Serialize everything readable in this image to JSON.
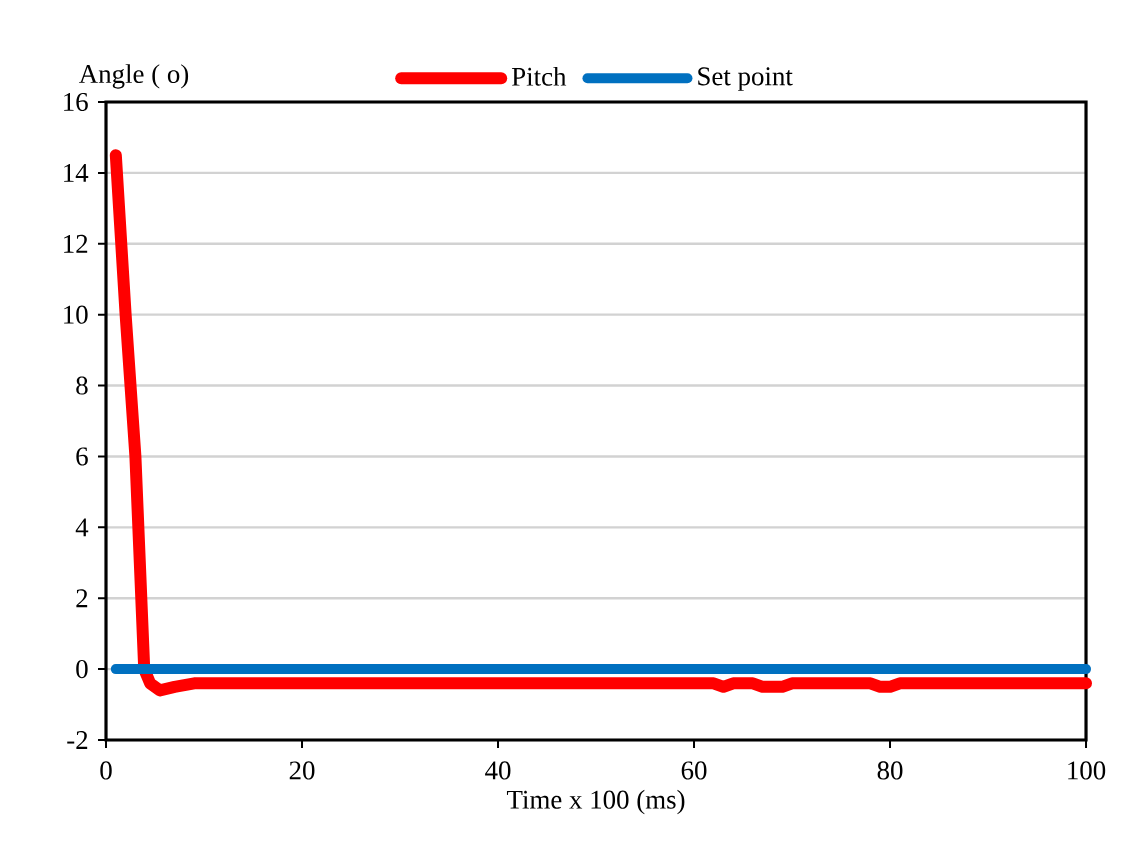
{
  "chart_data": {
    "type": "line",
    "xlabel": "Time x 100 (ms)",
    "ylabel": "Angle ( o)",
    "xlim": [
      0,
      100
    ],
    "xticks": [
      0,
      20,
      40,
      60,
      80,
      100
    ],
    "ylim": [
      -2,
      16
    ],
    "yticks": [
      -2,
      0,
      2,
      4,
      6,
      8,
      10,
      12,
      14,
      16
    ],
    "grid": "y",
    "legend": "top",
    "marker": "none",
    "line_style": "solid",
    "series": [
      {
        "name": "Pitch",
        "color": "#ff0000",
        "x": [
          1,
          2,
          3,
          3.9,
          4.5,
          5.5,
          7,
          9,
          10,
          20,
          40,
          60,
          62,
          63,
          64,
          66,
          67,
          69,
          70,
          78,
          79,
          80,
          81,
          90,
          100
        ],
        "values": [
          14.5,
          10,
          6,
          0,
          -0.4,
          -0.6,
          -0.5,
          -0.4,
          -0.4,
          -0.4,
          -0.4,
          -0.4,
          -0.4,
          -0.5,
          -0.4,
          -0.4,
          -0.5,
          -0.5,
          -0.4,
          -0.4,
          -0.5,
          -0.5,
          -0.4,
          -0.4,
          -0.4
        ]
      },
      {
        "name": "Set point",
        "color": "#0070c0",
        "x": [
          1,
          100
        ],
        "values": [
          0,
          0
        ]
      }
    ]
  }
}
